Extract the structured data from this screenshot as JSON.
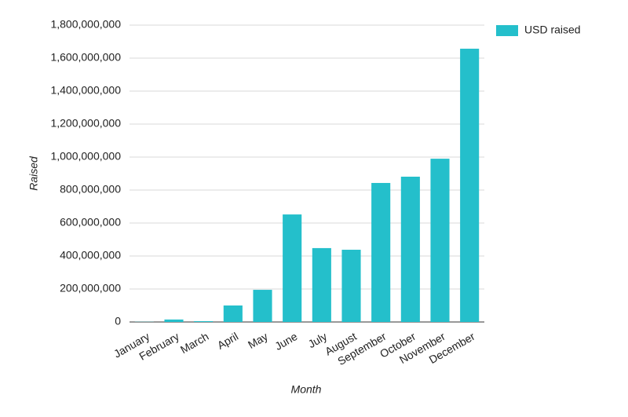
{
  "chart_data": {
    "type": "bar",
    "x_label": "Month",
    "y_label": "Raised",
    "categories": [
      "January",
      "February",
      "March",
      "April",
      "May",
      "June",
      "July",
      "August",
      "September",
      "October",
      "November",
      "December"
    ],
    "series": [
      {
        "name": "USD raised",
        "color": "#24bfcb",
        "values": [
          1000000,
          15000000,
          5000000,
          100000000,
          195000000,
          652000000,
          448000000,
          438000000,
          843000000,
          881000000,
          990000000,
          1657000000
        ]
      }
    ],
    "ylim": [
      0,
      1800000000
    ],
    "yticks": [
      0,
      {
        "value": 200000000,
        "label": "200,000,000"
      },
      {
        "value": 400000000,
        "label": "400,000,000"
      },
      {
        "value": 600000000,
        "label": "600,000,000"
      },
      {
        "value": 800000000,
        "label": "800,000,000"
      },
      {
        "value": 1000000000,
        "label": "1,000,000,000"
      },
      {
        "value": 1200000000,
        "label": "1,200,000,000"
      },
      {
        "value": 1400000000,
        "label": "1,400,000,000"
      },
      {
        "value": 1600000000,
        "label": "1,600,000,000"
      },
      {
        "value": 1800000000,
        "label": "1,800,000,000"
      }
    ],
    "grid": true,
    "legend": "top-right"
  }
}
